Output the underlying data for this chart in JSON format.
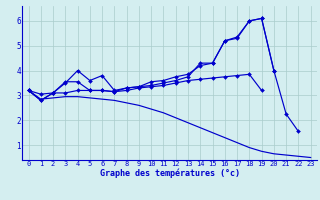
{
  "x": [
    0,
    1,
    2,
    3,
    4,
    5,
    6,
    7,
    8,
    9,
    10,
    11,
    12,
    13,
    14,
    15,
    16,
    17,
    18,
    19,
    20,
    21,
    22,
    23
  ],
  "line1": [
    3.2,
    2.8,
    3.1,
    3.5,
    4.0,
    3.6,
    3.8,
    3.2,
    3.3,
    3.35,
    3.55,
    3.6,
    3.75,
    3.85,
    4.2,
    4.3,
    5.2,
    5.35,
    6.0,
    6.1,
    4.0,
    2.25,
    1.55,
    null
  ],
  "line2": [
    3.2,
    2.8,
    3.1,
    3.55,
    3.55,
    3.2,
    3.2,
    3.15,
    3.3,
    3.35,
    3.4,
    3.5,
    3.6,
    3.75,
    4.3,
    4.3,
    5.2,
    5.3,
    6.0,
    6.1,
    4.0,
    null,
    null,
    null
  ],
  "line3": [
    3.2,
    3.05,
    3.1,
    3.1,
    3.2,
    3.2,
    3.2,
    3.15,
    3.2,
    3.3,
    3.35,
    3.4,
    3.5,
    3.6,
    3.65,
    3.7,
    3.75,
    3.8,
    3.85,
    3.2,
    null,
    null,
    null,
    null
  ],
  "line4": [
    3.2,
    2.85,
    2.9,
    2.95,
    2.95,
    2.9,
    2.85,
    2.8,
    2.7,
    2.6,
    2.45,
    2.3,
    2.1,
    1.9,
    1.7,
    1.5,
    1.3,
    1.1,
    0.9,
    0.75,
    0.65,
    0.6,
    0.55,
    0.5
  ],
  "xlabel": "Graphe des températures (°c)",
  "ylim": [
    0.4,
    6.6
  ],
  "xlim": [
    -0.5,
    23.5
  ],
  "yticks": [
    1,
    2,
    3,
    4,
    5,
    6
  ],
  "xticks": [
    0,
    1,
    2,
    3,
    4,
    5,
    6,
    7,
    8,
    9,
    10,
    11,
    12,
    13,
    14,
    15,
    16,
    17,
    18,
    19,
    20,
    21,
    22,
    23
  ],
  "line_color": "#0000cc",
  "bg_color": "#d4eef0",
  "grid_color": "#aacccc",
  "tick_fontsize": 5.0,
  "xlabel_fontsize": 6.0
}
